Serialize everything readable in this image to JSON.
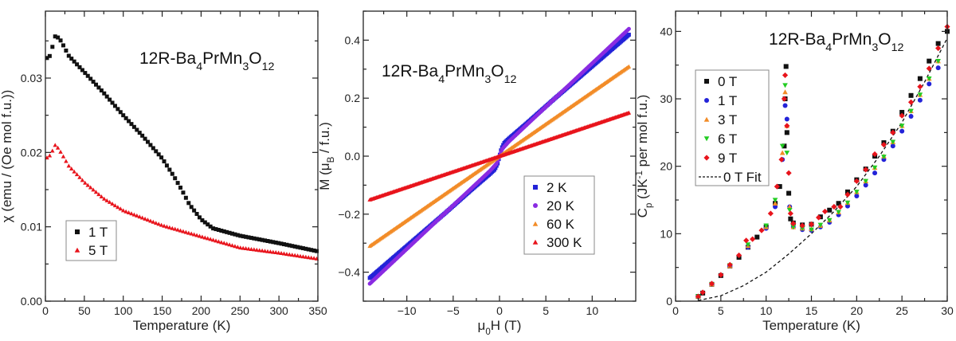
{
  "chart_data": [
    {
      "type": "scatter",
      "annotation": "12R-Ba_{4}PrMn_{3}O_{12}",
      "xlabel": "Temperature (K)",
      "ylabel": "χ (emu / (Oe mol f.u.))",
      "xlim": [
        0,
        350
      ],
      "ylim": [
        0,
        0.039
      ],
      "xticks": [
        0,
        50,
        100,
        150,
        200,
        250,
        300,
        350
      ],
      "xtick_labels": [
        "0",
        "50",
        "100",
        "150",
        "200",
        "250",
        "300",
        "350"
      ],
      "yticks": [
        0,
        0.01,
        0.02,
        0.03
      ],
      "ytick_labels": [
        "0.00",
        "0.01",
        "0.02",
        "0.03"
      ],
      "legend_position": "bottom-left",
      "series": [
        {
          "name": "1 T",
          "marker": "square",
          "color": "#111111",
          "x": [
            2,
            5,
            8,
            13,
            20,
            30,
            50,
            75,
            100,
            125,
            150,
            165,
            175,
            185,
            200,
            215,
            250,
            300,
            350
          ],
          "y": [
            0.0327,
            0.0328,
            0.0338,
            0.0358,
            0.035,
            0.033,
            0.0308,
            0.028,
            0.025,
            0.0222,
            0.0192,
            0.0168,
            0.015,
            0.013,
            0.011,
            0.0098,
            0.0088,
            0.0078,
            0.0067
          ]
        },
        {
          "name": "5 T",
          "marker": "triangle-up",
          "color": "#e8141c",
          "x": [
            2,
            5,
            8,
            13,
            20,
            30,
            50,
            75,
            100,
            150,
            200,
            250,
            300,
            350
          ],
          "y": [
            0.0193,
            0.0195,
            0.02,
            0.0211,
            0.02,
            0.0182,
            0.016,
            0.0138,
            0.0122,
            0.0102,
            0.0087,
            0.0072,
            0.0065,
            0.0057
          ]
        }
      ]
    },
    {
      "type": "scatter",
      "annotation": "12R-Ba_{4}PrMn_{3}O_{12}",
      "xlabel": "μ_{0}H (T)",
      "ylabel": "M (μ_{B} / f.u.)",
      "xlim": [
        -14.7,
        14.7
      ],
      "ylim": [
        -0.5,
        0.5
      ],
      "xticks": [
        -10,
        -5,
        0,
        5,
        10
      ],
      "xtick_labels": [
        "−10",
        "−5",
        "0",
        "5",
        "10"
      ],
      "yticks": [
        -0.4,
        -0.2,
        0,
        0.2,
        0.4
      ],
      "ytick_labels": [
        "−0.4",
        "−0.2",
        "0.0",
        "0.2",
        "0.4"
      ],
      "legend_position": "lower-right",
      "series": [
        {
          "name": "2 K",
          "marker": "square",
          "color": "#2323d8",
          "x": [
            -14,
            -10,
            -6,
            -3,
            -1,
            -0.5,
            -0.2,
            0,
            0.2,
            0.5,
            1,
            3,
            6,
            10,
            14
          ],
          "y": [
            -0.42,
            -0.31,
            -0.2,
            -0.115,
            -0.06,
            -0.045,
            -0.025,
            0,
            0.025,
            0.045,
            0.06,
            0.115,
            0.2,
            0.31,
            0.42
          ]
        },
        {
          "name": "20 K",
          "marker": "circle",
          "color": "#8a2be2",
          "x": [
            -14,
            -10,
            -6,
            -3,
            -1,
            -0.3,
            0,
            0.3,
            1,
            3,
            6,
            10,
            14
          ],
          "y": [
            -0.44,
            -0.32,
            -0.2,
            -0.11,
            -0.05,
            -0.025,
            0,
            0.025,
            0.05,
            0.11,
            0.2,
            0.32,
            0.44
          ]
        },
        {
          "name": "60 K",
          "marker": "triangle-up",
          "color": "#f28c28",
          "x": [
            -14,
            0,
            14
          ],
          "y": [
            -0.31,
            0,
            0.31
          ]
        },
        {
          "name": "300 K",
          "marker": "triangle-up",
          "color": "#e8141c",
          "x": [
            -14,
            0,
            14
          ],
          "y": [
            -0.15,
            0,
            0.15
          ]
        }
      ]
    },
    {
      "type": "scatter",
      "annotation": "12R-Ba_{4}PrMn_{3}O_{12}",
      "xlabel": "Temperature (K)",
      "ylabel": "C_{p} (JK^{-1} per mol f.u.)",
      "xlim": [
        0,
        30
      ],
      "ylim": [
        0,
        43
      ],
      "xticks": [
        0,
        5,
        10,
        15,
        20,
        25,
        30
      ],
      "xtick_labels": [
        "0",
        "5",
        "10",
        "15",
        "20",
        "25",
        "30"
      ],
      "yticks": [
        0,
        10,
        20,
        30,
        40
      ],
      "ytick_labels": [
        "0",
        "10",
        "20",
        "30",
        "40"
      ],
      "legend_position": "upper-left",
      "series": [
        {
          "name": "0 T",
          "marker": "square",
          "color": "#111111",
          "x": [
            2.5,
            3,
            4,
            5,
            6,
            7,
            8,
            9,
            10,
            11,
            11.5,
            12,
            12.1,
            12.2,
            12.3,
            12.5,
            12.7,
            13,
            14,
            15,
            16,
            17,
            18,
            19,
            20,
            21,
            22,
            23,
            24,
            25,
            26,
            27,
            28,
            29,
            30
          ],
          "y": [
            0.7,
            1.2,
            2.5,
            3.8,
            5.2,
            6.5,
            8,
            9.5,
            11,
            14.5,
            17,
            23,
            30,
            34.8,
            25,
            16,
            12.2,
            11.6,
            11.3,
            11.4,
            12.5,
            13.5,
            14.5,
            16.2,
            18,
            19.6,
            21.5,
            23.5,
            25.2,
            28,
            30.5,
            33,
            35.6,
            38.2,
            40
          ]
        },
        {
          "name": "1 T",
          "marker": "circle",
          "color": "#2323d8",
          "x": [
            2.5,
            4,
            6,
            8,
            10,
            11,
            11.8,
            12.1,
            12.3,
            12.6,
            13,
            14,
            15,
            16,
            17,
            18,
            19,
            20,
            21,
            22,
            23,
            24,
            25,
            26,
            27,
            28,
            29
          ],
          "y": [
            0.7,
            2.5,
            5.2,
            8,
            10.8,
            14,
            21,
            29,
            27,
            14,
            11,
            10.6,
            10.5,
            11,
            11.7,
            12.8,
            14.1,
            15.6,
            17.2,
            19,
            21,
            23,
            25.2,
            27.4,
            29.8,
            32.2,
            34.6
          ]
        },
        {
          "name": "3 T",
          "marker": "triangle-up",
          "color": "#f28c28",
          "x": [
            2.5,
            4,
            6,
            8,
            10,
            11,
            11.8,
            12.1,
            12.3,
            12.6,
            13,
            14,
            15,
            16,
            17,
            18,
            19,
            20,
            21,
            22,
            23,
            24,
            25,
            26,
            27,
            28,
            29
          ],
          "y": [
            0.7,
            2.5,
            5.2,
            8.2,
            11,
            14.5,
            22,
            31,
            26,
            14,
            11,
            10.8,
            10.7,
            11.2,
            12,
            13.2,
            14.6,
            16.2,
            17.8,
            19.8,
            21.5,
            23.6,
            26,
            28.2,
            30.6,
            33,
            35.6
          ]
        },
        {
          "name": "6 T",
          "marker": "triangle-down",
          "color": "#22cc22",
          "x": [
            2.5,
            4,
            6,
            8,
            10,
            11,
            11.8,
            12.1,
            12.3,
            12.6,
            13,
            14,
            15,
            16,
            17,
            18,
            19,
            20,
            21,
            22,
            23,
            24,
            25,
            26,
            27,
            28,
            29
          ],
          "y": [
            0.7,
            2.5,
            5.3,
            8.4,
            11.2,
            15,
            23,
            32,
            22,
            13.5,
            11,
            10.8,
            10.6,
            11.3,
            12,
            13.2,
            14.6,
            16.2,
            17.8,
            19.8,
            21.4,
            23.6,
            26,
            28.2,
            30.6,
            33,
            35.6
          ]
        },
        {
          "name": "9 T",
          "marker": "diamond",
          "color": "#e8141c",
          "x": [
            2.5,
            3,
            4,
            5,
            6,
            7,
            7.8,
            8.5,
            9.5,
            10.5,
            11.2,
            11.7,
            12,
            12.1,
            12.3,
            12.5,
            12.7,
            13,
            14,
            15,
            15.8,
            16.5,
            17.5,
            18.2,
            19,
            20,
            21,
            22,
            23,
            24,
            25,
            26,
            27,
            28,
            29,
            30
          ],
          "y": [
            0.7,
            1.3,
            2.6,
            3.9,
            5.4,
            6.8,
            9,
            9.2,
            10.5,
            13,
            17,
            21,
            30,
            33.5,
            26,
            19,
            13,
            11.5,
            11.2,
            11.4,
            12.4,
            13.3,
            14,
            14,
            15.8,
            17.8,
            19.5,
            21.8,
            23.2,
            25,
            27.5,
            29.5,
            31.8,
            34.5,
            37.5,
            40.7
          ]
        }
      ],
      "fit": {
        "name": "0 T Fit",
        "style": "dashed",
        "color": "#111111",
        "x": [
          2.5,
          5,
          7.5,
          10,
          12.5,
          15,
          17.5,
          20,
          22.5,
          25,
          27.5,
          30
        ],
        "y": [
          0.1,
          0.8,
          2.3,
          4.3,
          7,
          10,
          13.3,
          17,
          21.5,
          26.5,
          32.5,
          39
        ]
      }
    }
  ]
}
